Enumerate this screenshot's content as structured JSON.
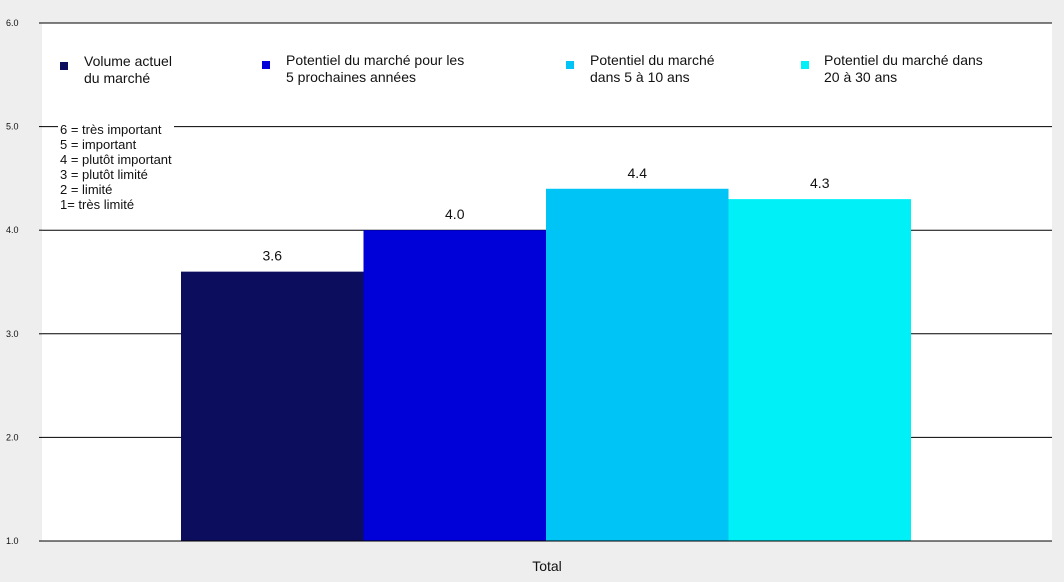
{
  "chart_data": {
    "type": "bar",
    "categories": [
      "Total"
    ],
    "series": [
      {
        "name": "Volume actuel du marché",
        "label_lines": [
          "Volume actuel",
          "du marché"
        ],
        "values": [
          3.6
        ],
        "value_label": "3.6",
        "color": "#0d0d5e"
      },
      {
        "name": "Potentiel du marché pour les 5 prochaines années",
        "label_lines": [
          "Potentiel du marché pour les",
          "5 prochaines années"
        ],
        "values": [
          4.0
        ],
        "value_label": "4.0",
        "color": "#0000d9"
      },
      {
        "name": "Potentiel du marché dans 5 à 10 ans",
        "label_lines": [
          "Potentiel du marché",
          "dans 5 à 10 ans"
        ],
        "values": [
          4.4
        ],
        "value_label": "4.4",
        "color": "#00c4f5"
      },
      {
        "name": "Potentiel du marché dans 20 à 30 ans",
        "label_lines": [
          "Potentiel du marché dans",
          "20 à 30 ans"
        ],
        "values": [
          4.3
        ],
        "value_label": "4.3",
        "color": "#00f0f8"
      }
    ],
    "y_ticks": [
      "1.0",
      "2.0",
      "3.0",
      "4.0",
      "5.0",
      "6.0"
    ],
    "ylim": [
      1,
      6
    ],
    "xlabel": "Total",
    "grid": true,
    "legend_position": "top",
    "scale_note": [
      "6 = très important",
      "5 = important",
      "4 = plutôt important",
      "3 = plutôt limité",
      "2 = limité",
      "1= très limité"
    ]
  }
}
